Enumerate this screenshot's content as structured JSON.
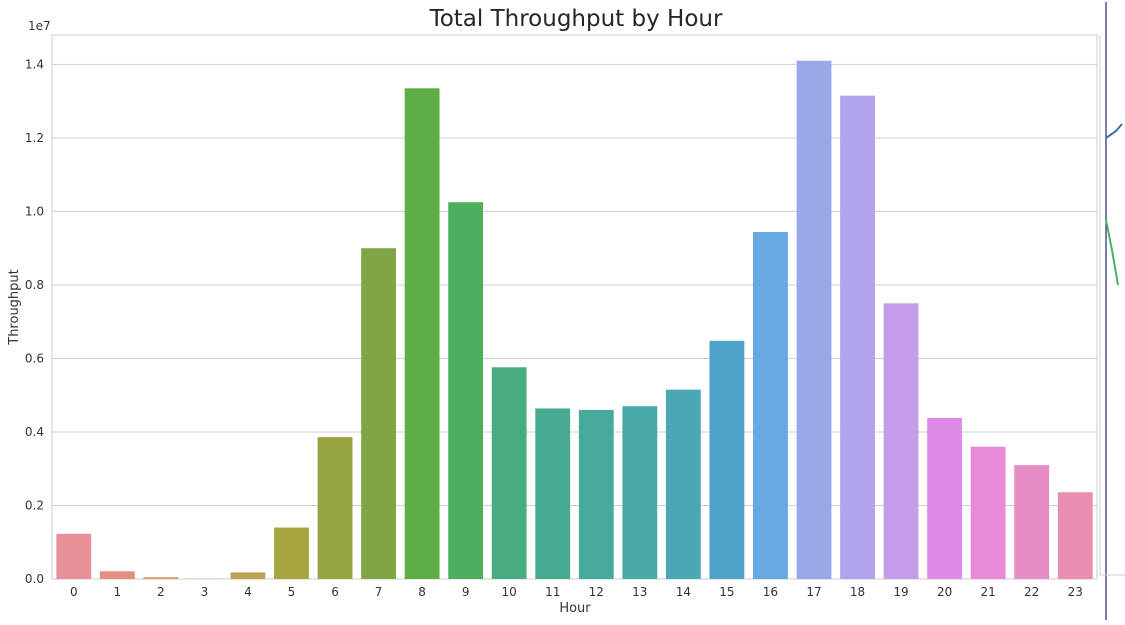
{
  "chart_data": {
    "type": "bar",
    "title": "Total Throughput by Hour",
    "xlabel": "Hour",
    "ylabel": "Throughput",
    "y_offset_label": "1e7",
    "categories": [
      "0",
      "1",
      "2",
      "3",
      "4",
      "5",
      "6",
      "7",
      "8",
      "9",
      "10",
      "11",
      "12",
      "13",
      "14",
      "15",
      "16",
      "17",
      "18",
      "19",
      "20",
      "21",
      "22",
      "23"
    ],
    "values": [
      1230000,
      210000,
      50000,
      10000,
      180000,
      1400000,
      3860000,
      9000000,
      13350000,
      10250000,
      5760000,
      4640000,
      4600000,
      4700000,
      5150000,
      6480000,
      9440000,
      14100000,
      13150000,
      7500000,
      4380000,
      3600000,
      3100000,
      2360000
    ],
    "colors": [
      "#E8909A",
      "#E28E80",
      "#D99B6C",
      "#C9A165",
      "#B9A455",
      "#A8A53F",
      "#98A441",
      "#80A544",
      "#5FAE45",
      "#4DAE5E",
      "#48AC80",
      "#47AB92",
      "#48AA9C",
      "#49A9A6",
      "#4BA7B3",
      "#4FA3C9",
      "#66A8E0",
      "#9AA8E9",
      "#B3A2EE",
      "#C49CE8",
      "#DD8AE9",
      "#E88AD9",
      "#E88CC6",
      "#E98DB3"
    ],
    "ylim": [
      0,
      14800000
    ],
    "yticks": [
      0,
      2000000,
      4000000,
      6000000,
      8000000,
      10000000,
      12000000,
      14000000
    ],
    "ytick_labels": [
      "0.0",
      "0.2",
      "0.4",
      "0.6",
      "0.8",
      "1.0",
      "1.2",
      "1.4"
    ],
    "grid": true,
    "legend": "none"
  }
}
